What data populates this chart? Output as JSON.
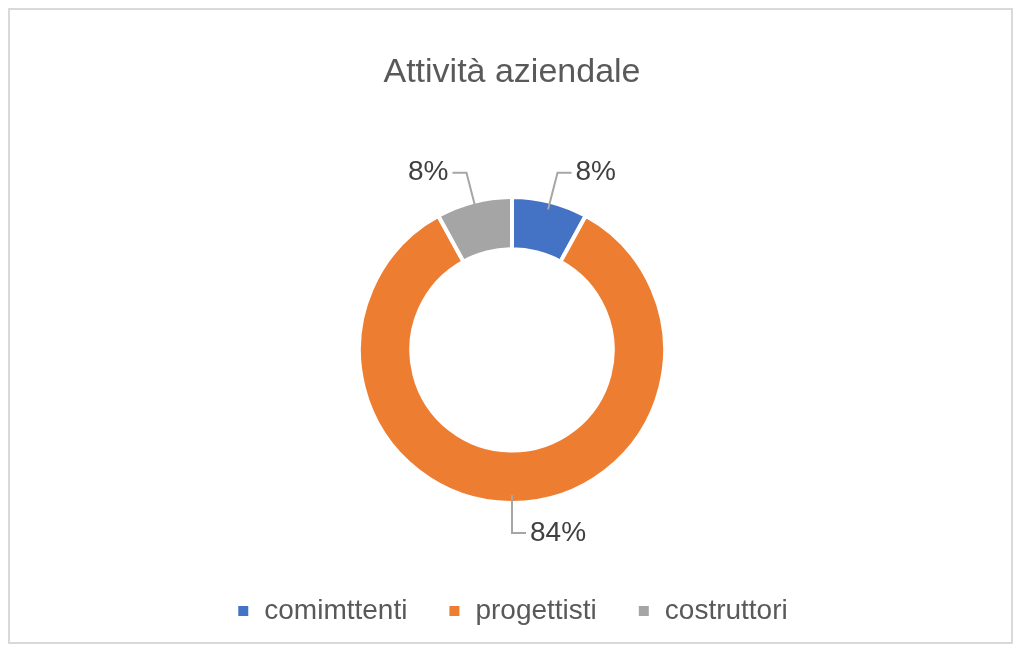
{
  "chart_data": {
    "type": "donut",
    "title": "Attività aziendale",
    "categories": [
      "comimttenti",
      "progettisti",
      "costruttori"
    ],
    "values": [
      8,
      84,
      8
    ],
    "colors": [
      "#4472c4",
      "#ed7d31",
      "#a5a5a5"
    ],
    "value_labels": [
      "8%",
      "84%",
      "8%"
    ],
    "legend": "bottom"
  }
}
